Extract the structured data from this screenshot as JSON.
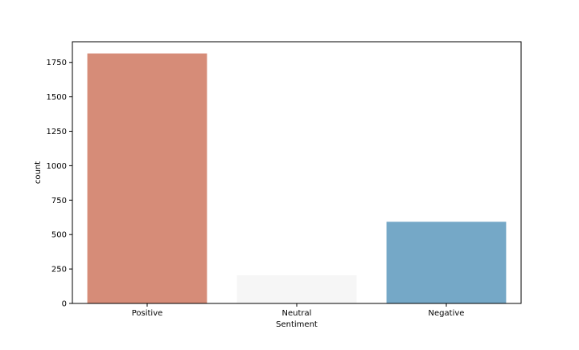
{
  "chart_data": {
    "type": "bar",
    "title": "",
    "xlabel": "Sentiment",
    "ylabel": "count",
    "categories": [
      "Positive",
      "Neutral",
      "Negative"
    ],
    "values": [
      1815,
      205,
      593
    ],
    "colors": [
      "#d68c78",
      "#f6f6f6",
      "#75a8c7"
    ],
    "ylim": [
      0,
      1900
    ],
    "yticks": [
      0,
      250,
      500,
      750,
      1000,
      1250,
      1500,
      1750
    ],
    "grid": false,
    "legend": "none"
  }
}
